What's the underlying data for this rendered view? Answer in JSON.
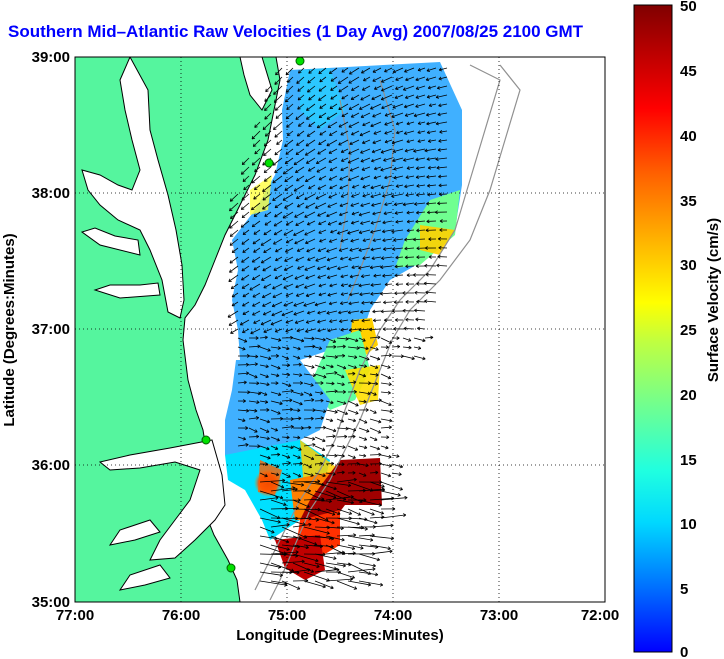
{
  "title": "Southern Mid–Atlantic Raw Velocities (1 Day Avg) 2007/08/25 2100 GMT",
  "axes": {
    "xlabel": "Longitude (Degrees:Minutes)",
    "ylabel": "Latitude (Degrees:Minutes)",
    "xticks": [
      "77:00",
      "76:00",
      "75:00",
      "74:00",
      "73:00",
      "72:00"
    ],
    "yticks": [
      "39:00",
      "38:00",
      "37:00",
      "36:00",
      "35:00"
    ]
  },
  "colorbar": {
    "label": "Surface Velocity (cm/s)",
    "ticks": [
      "50",
      "45",
      "40",
      "35",
      "30",
      "25",
      "20",
      "15",
      "10",
      "5",
      "0"
    ],
    "range": [
      0,
      50
    ],
    "colors": [
      "#0000ff",
      "#00a0ff",
      "#00ffff",
      "#40ffc0",
      "#80ff80",
      "#c0ff40",
      "#ffff00",
      "#ffc000",
      "#ff8000",
      "#ff0000",
      "#c00000",
      "#800000"
    ]
  },
  "colors": {
    "land": "#55f59e",
    "coast": "#000000",
    "bathymetry": "#909090",
    "grid": "#000000",
    "station": "#00e000"
  },
  "stations": [
    {
      "lon": -74.93,
      "lat": 39.0
    },
    {
      "lon": -75.08,
      "lat": 38.2
    },
    {
      "lon": -75.7,
      "lat": 36.2
    },
    {
      "lon": -75.5,
      "lat": 35.2
    }
  ]
}
